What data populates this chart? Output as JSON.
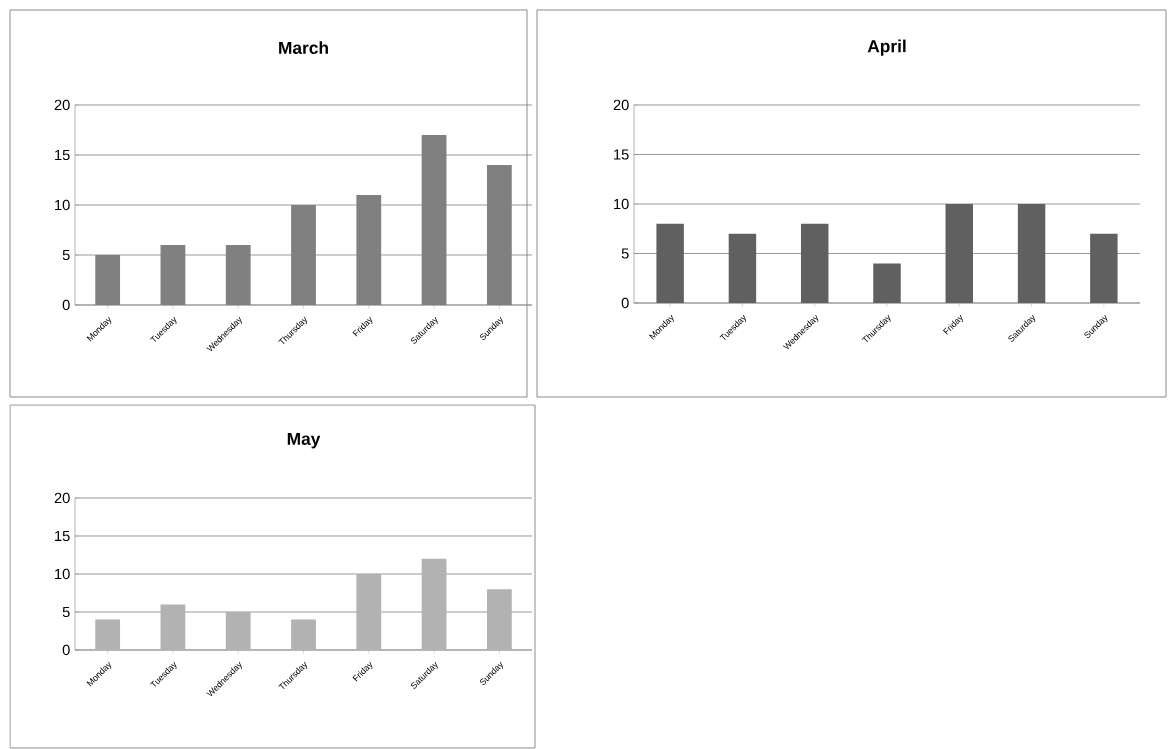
{
  "chart_data": [
    {
      "type": "bar",
      "title": "March",
      "categories": [
        "Monday",
        "Tuesday",
        "Wednesday",
        "Thursday",
        "Friday",
        "Saturday",
        "Sunday"
      ],
      "values": [
        5,
        6,
        6,
        10,
        11,
        17,
        14
      ],
      "color": "#808080",
      "ylim": [
        0,
        20
      ],
      "yticks": [
        0,
        5,
        10,
        15,
        20
      ],
      "grid": "y"
    },
    {
      "type": "bar",
      "title": "April",
      "categories": [
        "Monday",
        "Tuesday",
        "Wednesday",
        "Thursday",
        "Friday",
        "Saturday",
        "Sunday"
      ],
      "values": [
        8,
        7,
        8,
        4,
        10,
        10,
        7
      ],
      "color": "#606060",
      "ylim": [
        0,
        20
      ],
      "yticks": [
        0,
        5,
        10,
        15,
        20
      ],
      "grid": "y"
    },
    {
      "type": "bar",
      "title": "May",
      "categories": [
        "Monday",
        "Tuesday",
        "Wednesday",
        "Thursday",
        "Friday",
        "Saturday",
        "Sunday"
      ],
      "values": [
        4,
        6,
        5,
        4,
        10,
        12,
        8
      ],
      "color": "#b2b2b2",
      "ylim": [
        0,
        20
      ],
      "yticks": [
        0,
        5,
        10,
        15,
        20
      ],
      "grid": "y"
    }
  ]
}
